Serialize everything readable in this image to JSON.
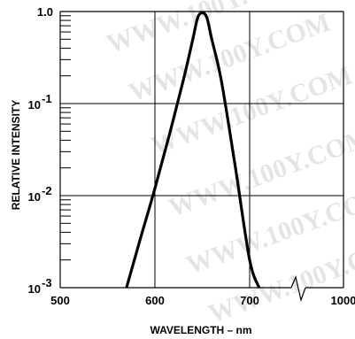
{
  "chart_data": {
    "type": "line",
    "title": "",
    "xlabel": "WAVELENGTH – nm",
    "ylabel": "RELATIVE INTENSITY",
    "x_scale": "broken",
    "x_segment": [
      500,
      700
    ],
    "x_break_label": "1000",
    "y_scale": "log",
    "ylim": [
      0.001,
      1.0
    ],
    "x_ticks": [
      {
        "value": 500,
        "label": "500"
      },
      {
        "value": 600,
        "label": "600"
      },
      {
        "value": 700,
        "label": "700"
      }
    ],
    "y_ticks": [
      {
        "value": 1.0,
        "base": "1.0",
        "exp": ""
      },
      {
        "value": 0.1,
        "base": "10",
        "exp": "-1"
      },
      {
        "value": 0.01,
        "base": "10",
        "exp": "-2"
      },
      {
        "value": 0.001,
        "base": "10",
        "exp": "-3"
      }
    ],
    "grid": true,
    "legend": "none",
    "watermark_text": "WWW.100Y.COM",
    "series": [
      {
        "color": "#000000",
        "x": [
          570,
          585,
          600,
          615,
          630,
          640,
          645,
          650,
          655,
          660,
          670,
          685,
          700,
          710
        ],
        "y": [
          0.001,
          0.0035,
          0.012,
          0.045,
          0.18,
          0.5,
          0.85,
          1.0,
          0.85,
          0.5,
          0.18,
          0.02,
          0.002,
          0.001
        ]
      }
    ]
  }
}
